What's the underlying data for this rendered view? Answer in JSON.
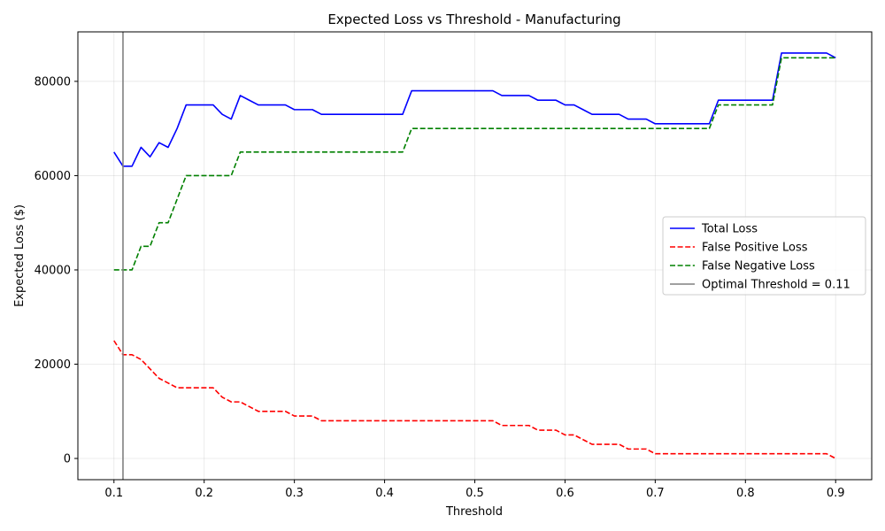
{
  "chart_data": {
    "type": "line",
    "title": "Expected Loss vs Threshold - Manufacturing",
    "xlabel": "Threshold",
    "ylabel": "Expected Loss ($)",
    "xlim": [
      0.06,
      0.94
    ],
    "ylim": [
      -4500,
      90500
    ],
    "xticks": [
      0.1,
      0.2,
      0.3,
      0.4,
      0.5,
      0.6,
      0.7,
      0.8,
      0.9
    ],
    "xtick_labels": [
      "0.1",
      "0.2",
      "0.3",
      "0.4",
      "0.5",
      "0.6",
      "0.7",
      "0.8",
      "0.9"
    ],
    "yticks": [
      0,
      20000,
      40000,
      60000,
      80000
    ],
    "ytick_labels": [
      "0",
      "20000",
      "40000",
      "60000",
      "80000"
    ],
    "grid": true,
    "legend_position": "center-right",
    "x": [
      0.1,
      0.11,
      0.12,
      0.13,
      0.14,
      0.15,
      0.16,
      0.17,
      0.18,
      0.19,
      0.2,
      0.21,
      0.22,
      0.23,
      0.24,
      0.25,
      0.26,
      0.27,
      0.28,
      0.29,
      0.3,
      0.31,
      0.32,
      0.33,
      0.34,
      0.35,
      0.36,
      0.37,
      0.38,
      0.39,
      0.4,
      0.41,
      0.42,
      0.43,
      0.44,
      0.45,
      0.46,
      0.47,
      0.48,
      0.49,
      0.5,
      0.51,
      0.52,
      0.53,
      0.54,
      0.55,
      0.56,
      0.57,
      0.58,
      0.59,
      0.6,
      0.61,
      0.62,
      0.63,
      0.64,
      0.65,
      0.66,
      0.67,
      0.68,
      0.69,
      0.7,
      0.71,
      0.72,
      0.73,
      0.74,
      0.75,
      0.76,
      0.77,
      0.78,
      0.79,
      0.8,
      0.81,
      0.82,
      0.83,
      0.84,
      0.85,
      0.86,
      0.87,
      0.88,
      0.89,
      0.9
    ],
    "series": [
      {
        "name": "Total Loss",
        "color": "#0000ff",
        "style": "solid",
        "values": [
          65000,
          62000,
          62000,
          66000,
          64000,
          67000,
          66000,
          70000,
          75000,
          75000,
          75000,
          75000,
          73000,
          72000,
          77000,
          76000,
          75000,
          75000,
          75000,
          75000,
          74000,
          74000,
          74000,
          73000,
          73000,
          73000,
          73000,
          73000,
          73000,
          73000,
          73000,
          73000,
          73000,
          78000,
          78000,
          78000,
          78000,
          78000,
          78000,
          78000,
          78000,
          78000,
          78000,
          77000,
          77000,
          77000,
          77000,
          76000,
          76000,
          76000,
          75000,
          75000,
          74000,
          73000,
          73000,
          73000,
          73000,
          72000,
          72000,
          72000,
          71000,
          71000,
          71000,
          71000,
          71000,
          71000,
          71000,
          76000,
          76000,
          76000,
          76000,
          76000,
          76000,
          76000,
          86000,
          86000,
          86000,
          86000,
          86000,
          86000,
          85000
        ]
      },
      {
        "name": "False Positive Loss",
        "color": "#ff0000",
        "style": "dashed",
        "values": [
          25000,
          22000,
          22000,
          21000,
          19000,
          17000,
          16000,
          15000,
          15000,
          15000,
          15000,
          15000,
          13000,
          12000,
          12000,
          11000,
          10000,
          10000,
          10000,
          10000,
          9000,
          9000,
          9000,
          8000,
          8000,
          8000,
          8000,
          8000,
          8000,
          8000,
          8000,
          8000,
          8000,
          8000,
          8000,
          8000,
          8000,
          8000,
          8000,
          8000,
          8000,
          8000,
          8000,
          7000,
          7000,
          7000,
          7000,
          6000,
          6000,
          6000,
          5000,
          5000,
          4000,
          3000,
          3000,
          3000,
          3000,
          2000,
          2000,
          2000,
          1000,
          1000,
          1000,
          1000,
          1000,
          1000,
          1000,
          1000,
          1000,
          1000,
          1000,
          1000,
          1000,
          1000,
          1000,
          1000,
          1000,
          1000,
          1000,
          1000,
          0
        ]
      },
      {
        "name": "False Negative Loss",
        "color": "#008000",
        "style": "dashed",
        "values": [
          40000,
          40000,
          40000,
          45000,
          45000,
          50000,
          50000,
          55000,
          60000,
          60000,
          60000,
          60000,
          60000,
          60000,
          65000,
          65000,
          65000,
          65000,
          65000,
          65000,
          65000,
          65000,
          65000,
          65000,
          65000,
          65000,
          65000,
          65000,
          65000,
          65000,
          65000,
          65000,
          65000,
          70000,
          70000,
          70000,
          70000,
          70000,
          70000,
          70000,
          70000,
          70000,
          70000,
          70000,
          70000,
          70000,
          70000,
          70000,
          70000,
          70000,
          70000,
          70000,
          70000,
          70000,
          70000,
          70000,
          70000,
          70000,
          70000,
          70000,
          70000,
          70000,
          70000,
          70000,
          70000,
          70000,
          70000,
          75000,
          75000,
          75000,
          75000,
          75000,
          75000,
          75000,
          85000,
          85000,
          85000,
          85000,
          85000,
          85000,
          85000
        ]
      }
    ],
    "vline": {
      "name": "Optimal Threshold = 0.11",
      "x": 0.11,
      "color": "#808080"
    }
  }
}
